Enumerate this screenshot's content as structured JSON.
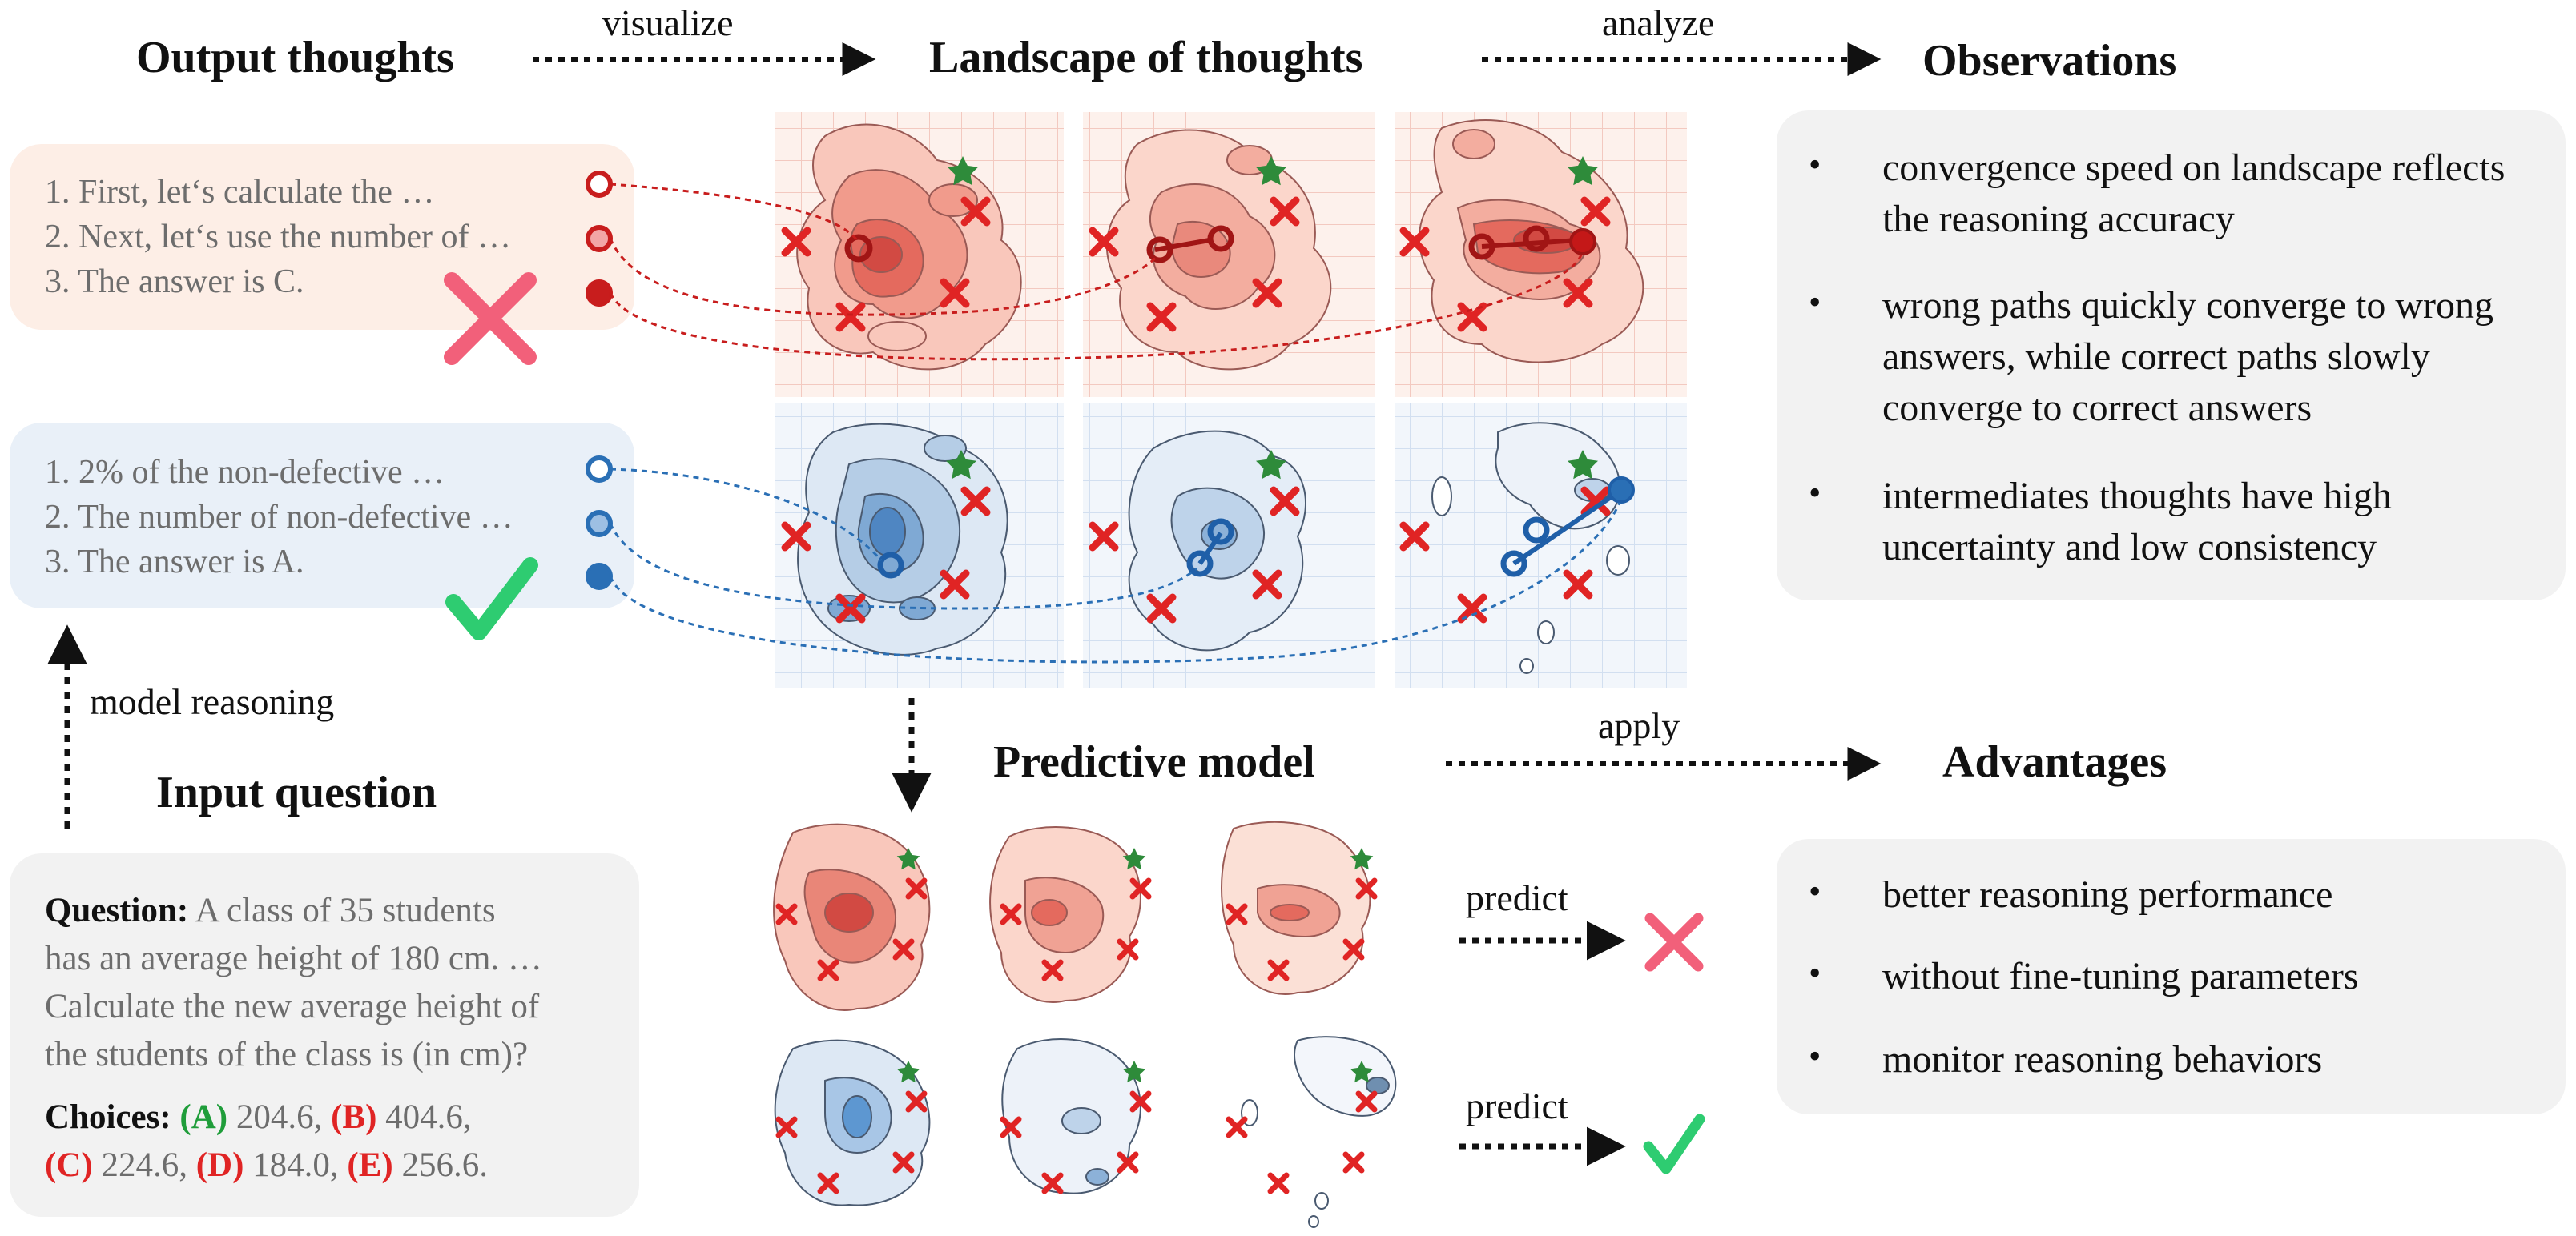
{
  "headings": {
    "output_thoughts": "Output thoughts",
    "landscape": "Landscape of thoughts",
    "observations": "Observations",
    "predictive_model": "Predictive model",
    "advantages": "Advantages",
    "input_question": "Input question"
  },
  "arrow_labels": {
    "visualize": "visualize",
    "analyze": "analyze",
    "apply": "apply",
    "model_reasoning": "model reasoning",
    "predict_top": "predict",
    "predict_bottom": "predict"
  },
  "wrong_thoughts": [
    "1. First, let‘s calculate the …",
    "2. Next, let‘s use the number of …",
    "3. The answer is C."
  ],
  "correct_thoughts": [
    "1. 2% of the non-defective …",
    "2. The number of non-defective …",
    "3. The answer is A."
  ],
  "observations": [
    "convergence speed on landscape reflects the reasoning accuracy",
    "wrong paths quickly converge to wrong answers, while correct paths slowly converge to correct answers",
    "intermediates thoughts have high uncertainty and low consistency"
  ],
  "advantages": [
    "better reasoning performance",
    "without fine-tuning parameters",
    "monitor reasoning behaviors"
  ],
  "question": {
    "label": "Question:",
    "lines": [
      "A class of 35 students",
      "has an average height of 180 cm. …",
      "Calculate the new average height of",
      "the students of the class is (in cm)?"
    ],
    "choices_label": "Choices:",
    "choices": [
      {
        "key": "(A)",
        "value": "204.6,",
        "correct": true
      },
      {
        "key": "(B)",
        "value": "404.6,",
        "correct": false
      },
      {
        "key": "(C)",
        "value": "224.6,",
        "correct": false
      },
      {
        "key": "(D)",
        "value": "184.0,",
        "correct": false
      },
      {
        "key": "(E)",
        "value": "256.6.",
        "correct": false
      }
    ]
  },
  "colors": {
    "wrong_box": "#fdeee6",
    "correct_box": "#e9f0f8",
    "gray_box": "#f2f2f2",
    "wrong_accent": "#c81d1d",
    "correct_accent": "#2a6fb5",
    "cross": "#f2607a",
    "check": "#2ecc71",
    "marker_x": "#e02424",
    "star": "#2e8b3a"
  }
}
